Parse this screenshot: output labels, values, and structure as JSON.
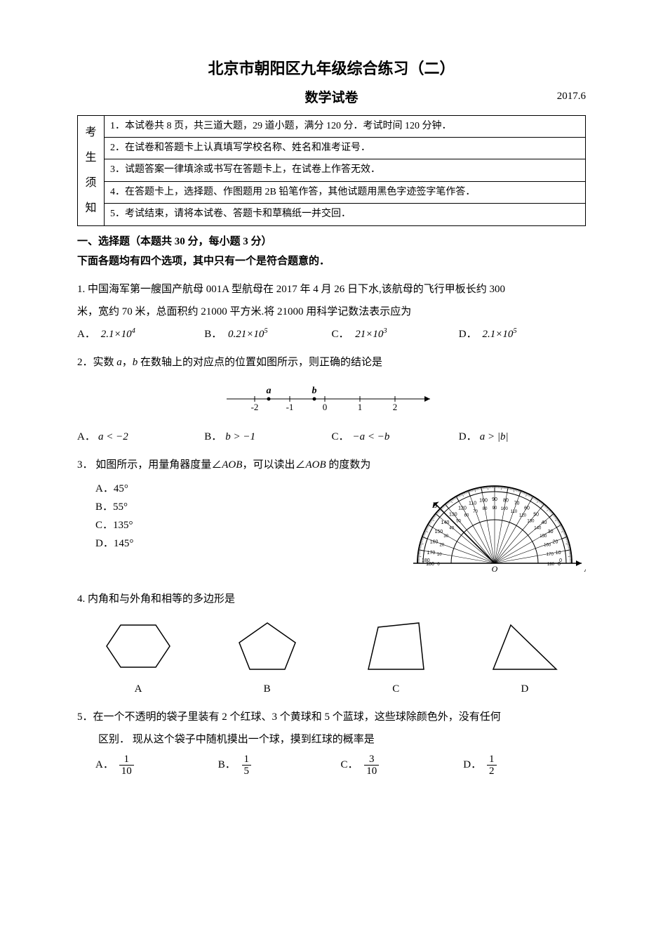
{
  "header": {
    "title": "北京市朝阳区九年级综合练习（二）",
    "subtitle": "数学试卷",
    "date": "2017.6"
  },
  "notice": {
    "left": [
      "考",
      "生",
      "须",
      "知"
    ],
    "items": [
      "1．本试卷共 8 页，共三道大题，29 道小题，满分 120 分．考试时间 120 分钟．",
      "2．在试卷和答题卡上认真填写学校名称、姓名和准考证号．",
      "3．试题答案一律填涂或书写在答题卡上，在试卷上作答无效．",
      "4．在答题卡上，选择题、作图题用 2B 铅笔作答，其他试题用黑色字迹签字笔作答．",
      "5．考试结束，请将本试卷、答题卡和草稿纸一并交回．"
    ]
  },
  "section1": {
    "head": "一、选择题（本题共 30 分，每小题 3 分）",
    "sub": "下面各题均有四个选项，其中只有一个是符合题意的．"
  },
  "q1": {
    "text1": "1. 中国海军第一艘国产航母 001A 型航母在 2017 年 4 月 26 日下水,该航母的飞行甲板长约 300",
    "text2": "米，宽约 70 米，总面积约 21000 平方米.将 21000 用科学记数法表示应为",
    "optA_label": "A．",
    "optA_val": "2.1×10",
    "optA_exp": "4",
    "optB_label": "B．",
    "optB_val": "0.21×10",
    "optB_exp": "5",
    "optC_label": "C．",
    "optC_val": "21×10",
    "optC_exp": "3",
    "optD_label": "D．",
    "optD_val": "2.1×10",
    "optD_exp": "5"
  },
  "q2": {
    "text": "2．实数 a，b 在数轴上的对应点的位置如图所示，则正确的结论是",
    "numberline": {
      "ticks": [
        "-2",
        "-1",
        "0",
        "1",
        "2"
      ],
      "a_pos": -1.6,
      "b_pos": -0.3,
      "a_label": "a",
      "b_label": "b",
      "line_color": "#000000"
    },
    "optA_label": "A．",
    "optA_html": "a < −2",
    "optB_label": "B．",
    "optB_html": "b > −1",
    "optC_label": "C．",
    "optC_html": "−a < −b",
    "optD_label": "D．",
    "optD_html": "a > |b|"
  },
  "q3": {
    "text": "3． 如图所示，用量角器度量∠AOB，可以读出∠AOB 的度数为",
    "optA": "A．45°",
    "optB": "B．55°",
    "optC": "C．135°",
    "optD": "D．145°",
    "protractor": {
      "outer_ticks_count": 19,
      "label_O": "O",
      "label_A": "A",
      "label_B": "B",
      "ray_angle_deg": 135,
      "stroke": "#000000"
    }
  },
  "q4": {
    "text": "4. 内角和与外角和相等的多边形是",
    "shapes": {
      "A": {
        "label": "A",
        "type": "hexagon"
      },
      "B": {
        "label": "B",
        "type": "pentagon"
      },
      "C": {
        "label": "C",
        "type": "quadrilateral"
      },
      "D": {
        "label": "D",
        "type": "triangle"
      }
    },
    "stroke": "#000000"
  },
  "q5": {
    "text1": "5．在一个不透明的袋子里装有 2 个红球、3 个黄球和 5 个蓝球，这些球除颜色外，没有任何",
    "text2": "区别． 现从这个袋子中随机摸出一个球，摸到红球的概率是",
    "optA_label": "A．",
    "optA_num": "1",
    "optA_den": "10",
    "optB_label": "B．",
    "optB_num": "1",
    "optB_den": "5",
    "optC_label": "C．",
    "optC_num": "3",
    "optC_den": "10",
    "optD_label": "D．",
    "optD_num": "1",
    "optD_den": "2"
  }
}
